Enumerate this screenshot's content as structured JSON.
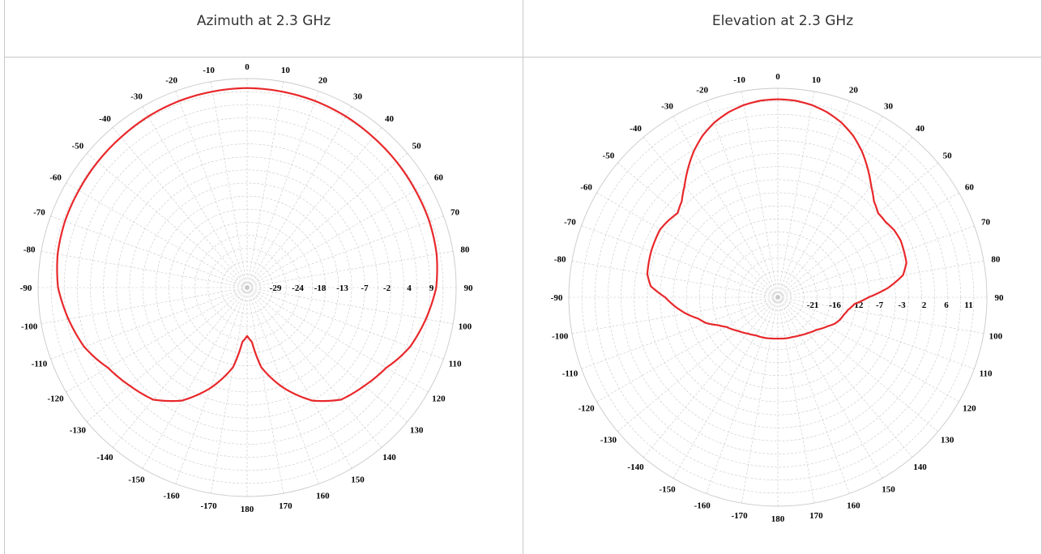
{
  "chart_data": [
    {
      "type": "polar-line",
      "title": "Azimuth at 2.3 GHz",
      "angle_labels": [
        "0",
        "10",
        "20",
        "30",
        "40",
        "50",
        "60",
        "70",
        "80",
        "90",
        "100",
        "110",
        "120",
        "130",
        "140",
        "150",
        "160",
        "170",
        "180",
        "-170",
        "-160",
        "-150",
        "-140",
        "-130",
        "-120",
        "-110",
        "-100",
        "-90",
        "-80",
        "-70",
        "-60",
        "-50",
        "-40",
        "-30",
        "-20",
        "-10"
      ],
      "radial_labels": [
        "-29",
        "-24",
        "-18",
        "-13",
        "-7",
        "-2",
        "4",
        "9"
      ],
      "rlim": [
        -35,
        9
      ],
      "line_color": "#e8282b",
      "series": [
        {
          "angles": [
            0,
            10,
            20,
            30,
            40,
            50,
            60,
            70,
            80,
            90,
            100,
            110,
            115,
            120,
            130,
            140,
            150,
            160,
            170,
            175,
            180,
            185,
            190,
            200,
            210,
            220,
            230,
            240,
            245,
            250,
            260,
            270,
            280,
            290,
            300,
            310,
            320,
            330,
            340,
            350,
            360
          ],
          "values": [
            7,
            6.9,
            6.8,
            6.6,
            6.3,
            6.1,
            5.9,
            5.8,
            5.5,
            4.8,
            3.2,
            1.5,
            0.2,
            -1.2,
            -2.8,
            -4.2,
            -7.5,
            -12.5,
            -18,
            -23.5,
            -24.8,
            -23.5,
            -18,
            -12.5,
            -7.5,
            -4.2,
            -2.8,
            -1.2,
            0.2,
            1.5,
            3.2,
            4.8,
            5.5,
            5.8,
            5.9,
            6.1,
            6.3,
            6.6,
            6.8,
            6.9,
            7
          ]
        }
      ]
    },
    {
      "type": "polar-line",
      "title": "Elevation at 2.3 GHz",
      "angle_labels": [
        "0",
        "10",
        "20",
        "30",
        "40",
        "50",
        "60",
        "70",
        "80",
        "90",
        "100",
        "110",
        "120",
        "130",
        "140",
        "150",
        "160",
        "170",
        "180",
        "-170",
        "-160",
        "-150",
        "-140",
        "-130",
        "-120",
        "-110",
        "-100",
        "-90",
        "-80",
        "-70",
        "-60",
        "-50",
        "-40",
        "-30",
        "-20",
        "-10"
      ],
      "radial_labels": [
        "-21",
        "-16",
        "-12",
        "-7",
        "-3",
        "2",
        "6",
        "11"
      ],
      "rlim": [
        -27,
        11
      ],
      "line_color": "#e8282b",
      "series": [
        {
          "angles": [
            0,
            5,
            10,
            15,
            20,
            25,
            30,
            35,
            40,
            45,
            50,
            55,
            60,
            65,
            70,
            75,
            80,
            85,
            90,
            95,
            100,
            105,
            110,
            115,
            120,
            130,
            140,
            150,
            160,
            170,
            180,
            190,
            200,
            210,
            220,
            230,
            240,
            245,
            250,
            255,
            260,
            265,
            270,
            275,
            280,
            285,
            290,
            295,
            300,
            305,
            310,
            315,
            320,
            325,
            330,
            335,
            340,
            345,
            350,
            355,
            360
          ],
          "values": [
            9,
            8.9,
            8.5,
            7.8,
            6.8,
            5.4,
            3.6,
            1.5,
            -0.6,
            -2.3,
            -3.2,
            -3.1,
            -2.6,
            -2.4,
            -2.6,
            -2.8,
            -3.9,
            -6.8,
            -10.5,
            -13,
            -14,
            -14.6,
            -15,
            -15.6,
            -16.5,
            -17.8,
            -18.5,
            -19,
            -19.3,
            -19.4,
            -19.5,
            -19.4,
            -19.2,
            -19,
            -18.4,
            -17.5,
            -16.2,
            -15,
            -13.2,
            -12,
            -10,
            -8.2,
            -6.5,
            -3.8,
            -2.9,
            -2.7,
            -2.5,
            -2.4,
            -2.3,
            -2.7,
            -3.2,
            -2.3,
            -0.6,
            1.5,
            3.6,
            5.4,
            6.8,
            7.8,
            8.5,
            8.9,
            9
          ]
        }
      ]
    }
  ]
}
